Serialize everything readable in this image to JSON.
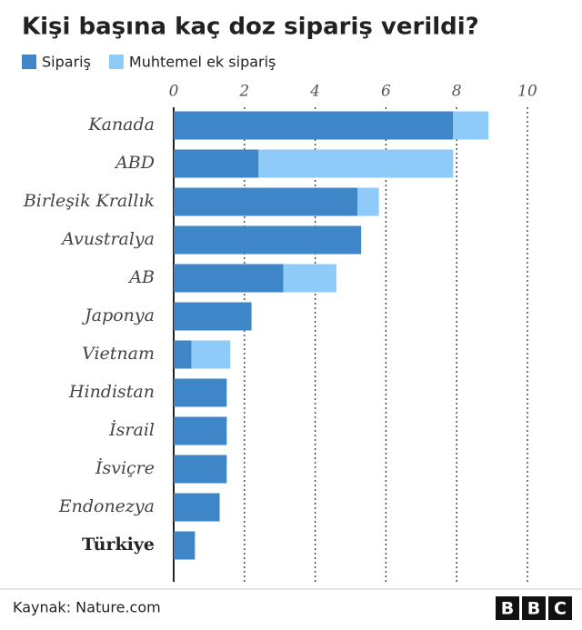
{
  "chart_data": {
    "type": "stacked-barh",
    "title": "Kişi başına kaç doz sipariş verildi?",
    "categories": [
      "Kanada",
      "ABD",
      "Birleşik Krallık",
      "Avustralya",
      "AB",
      "Japonya",
      "Vietnam",
      "Hindistan",
      "İsrail",
      "İsviçre",
      "Endonezya",
      "Türkiye"
    ],
    "series": [
      {
        "name": "Sipariş",
        "color": "#3f86c8",
        "values": [
          7.9,
          2.4,
          5.2,
          5.3,
          3.1,
          2.2,
          0.5,
          1.5,
          1.5,
          1.5,
          1.3,
          0.6
        ]
      },
      {
        "name": "Muhtemel ek sipariş",
        "color": "#8ecbf8",
        "values": [
          1.0,
          5.5,
          0.6,
          null,
          1.5,
          null,
          1.1,
          null,
          null,
          null,
          null,
          null
        ]
      }
    ],
    "xlim": [
      0,
      10
    ],
    "xticks": [
      0,
      2,
      4,
      6,
      8,
      10
    ],
    "grid": true,
    "source": "Kaynak: Nature.com",
    "logo": [
      "B",
      "B",
      "C"
    ]
  }
}
